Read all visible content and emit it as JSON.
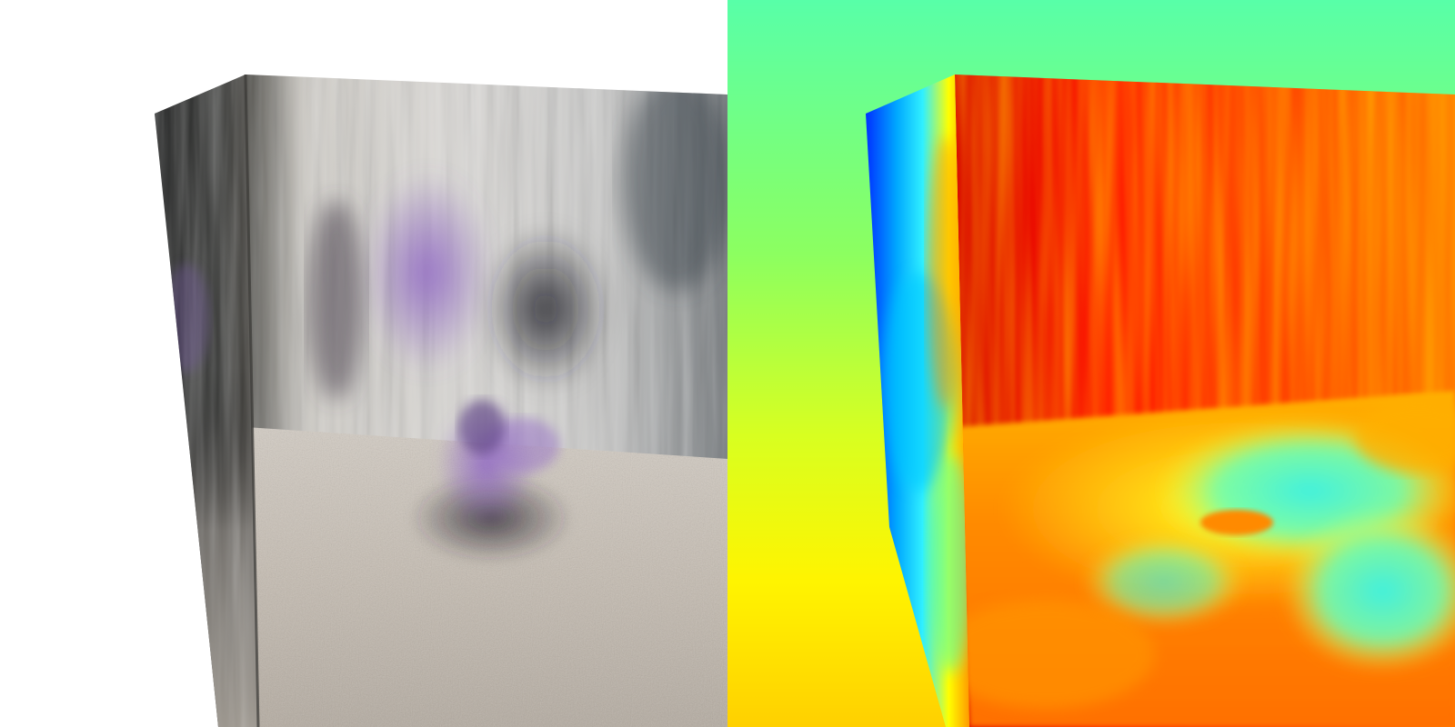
{
  "views": [
    {
      "id": "rgb-render",
      "kind": "color render of textured box interior",
      "background": "#ffffff",
      "palette": {
        "wall_light": "#d9d6d2",
        "wall_dark": "#2b2b2b",
        "floor": "#c9c0b6",
        "figure": "#7a52a8"
      }
    },
    {
      "id": "depth-map",
      "kind": "jet colormap depth visualization",
      "colormap": [
        "#00008f",
        "#0050ff",
        "#00d4ff",
        "#58ffa8",
        "#b8ff40",
        "#fff400",
        "#ff9000",
        "#ff2a00",
        "#c00000"
      ]
    }
  ]
}
